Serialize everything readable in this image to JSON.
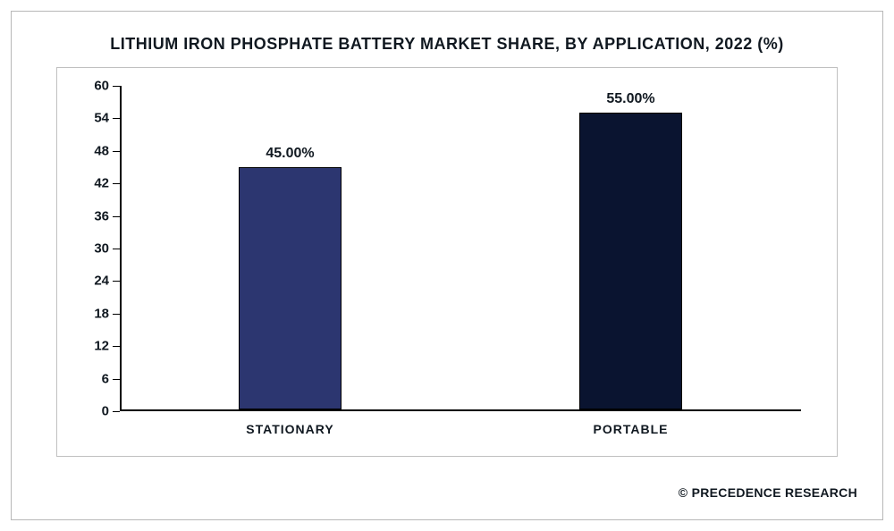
{
  "chart": {
    "type": "bar",
    "title": "LITHIUM IRON PHOSPHATE BATTERY MARKET SHARE, BY APPLICATION, 2022 (%)",
    "title_fontsize": 18,
    "title_color": "#101820",
    "background_color": "#ffffff",
    "frame_border_color": "#c0c0c0",
    "axis_color": "#000000",
    "categories": [
      "STATIONARY",
      "PORTABLE"
    ],
    "values": [
      45.0,
      55.0
    ],
    "value_labels": [
      "45.00%",
      "55.00%"
    ],
    "bar_colors": [
      "#2c3670",
      "#0a1430"
    ],
    "bar_width_ratio": 0.3,
    "ylim": [
      0,
      60
    ],
    "yticks": [
      0,
      6,
      12,
      18,
      24,
      30,
      36,
      42,
      48,
      54,
      60
    ],
    "ytick_labels": [
      "0",
      "6",
      "12",
      "18",
      "24",
      "30",
      "36",
      "42",
      "48",
      "54",
      "60"
    ],
    "label_fontsize": 15,
    "label_font_weight": 700,
    "cat_label_fontsize": 14,
    "value_label_fontsize": 16,
    "bar_border_color": "#000000",
    "footer_text": "© PRECEDENCE RESEARCH",
    "footer_fontsize": 14,
    "footer_color": "#101820"
  }
}
